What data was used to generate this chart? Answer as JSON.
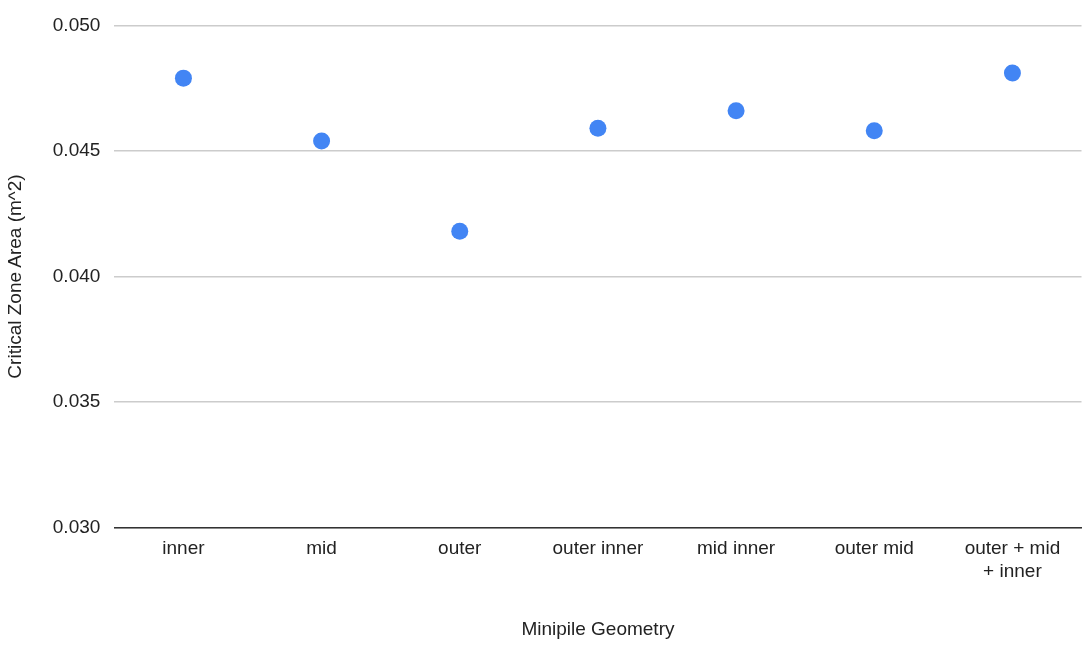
{
  "chart_data": {
    "type": "scatter",
    "xlabel": "Minipile Geometry",
    "ylabel": "Critical Zone Area (m^2)",
    "categories": [
      "inner",
      "mid",
      "outer",
      "outer inner",
      "mid inner",
      "outer mid",
      "outer + mid + inner"
    ],
    "series": [
      {
        "color": "#4285f4",
        "values": [
          0.0479,
          0.0454,
          0.0418,
          0.0459,
          0.0466,
          0.0458,
          0.0481
        ]
      }
    ],
    "ylim": [
      0.03,
      0.05
    ],
    "yticks": [
      {
        "value": 0.03,
        "label": "0.030"
      },
      {
        "value": 0.035,
        "label": "0.035"
      },
      {
        "value": 0.04,
        "label": "0.040"
      },
      {
        "value": 0.045,
        "label": "0.045"
      },
      {
        "value": 0.05,
        "label": "0.050"
      }
    ],
    "grid": "y",
    "legend": false,
    "marker": "circle"
  }
}
